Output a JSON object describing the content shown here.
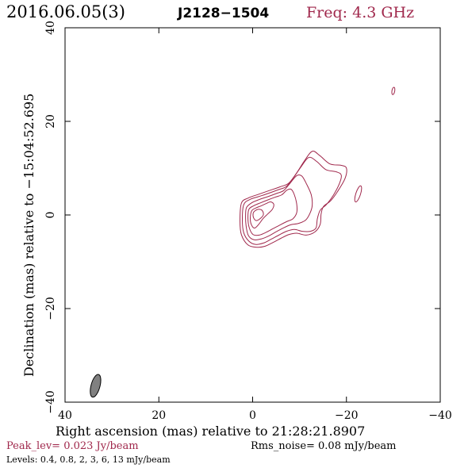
{
  "header": {
    "date": "2016.06.05(3)",
    "source": "J2128−1504",
    "freq": "Freq: 4.3 GHz"
  },
  "footer": {
    "peak": "Peak_lev=  0.023 Jy/beam",
    "rms": "Rms_noise= 0.08 mJy/beam",
    "levels": "Levels: 0.4, 0.8,   2,   3,   6,  13 mJy/beam"
  },
  "colors": {
    "accent": "#a0284c",
    "beam_fill": "#808080"
  },
  "chart_data": {
    "type": "contour",
    "xlabel": "Right ascension (mas) relative to 21:28:21.8907",
    "ylabel": "Declination (mas) relative to −15:04:52.695",
    "xlim": [
      40,
      -40
    ],
    "ylim": [
      -40,
      40
    ],
    "x_ticks": [
      40,
      20,
      0,
      -20,
      -40
    ],
    "y_ticks": [
      -40,
      -20,
      0,
      20,
      40
    ],
    "x_tick_labels": [
      "40",
      "20",
      "0",
      "−20",
      "−40"
    ],
    "y_tick_labels": [
      "−40",
      "−20",
      "0",
      "20",
      "40"
    ],
    "contour_levels_mJy": [
      0.4,
      0.8,
      2,
      3,
      6,
      13
    ],
    "beam": {
      "x": 33.5,
      "y": -36.5,
      "major": 5.0,
      "minor": 1.9,
      "pa_deg": 15
    },
    "contours": [
      [
        [
          2.4,
          2.5
        ],
        [
          1.0,
          3.6
        ],
        [
          -1.2,
          4.4
        ],
        [
          -3.5,
          5.2
        ],
        [
          -5.8,
          6.0
        ],
        [
          -7.7,
          6.8
        ],
        [
          -9.4,
          9.0
        ],
        [
          -11.0,
          11.5
        ],
        [
          -12.7,
          13.6
        ],
        [
          -14.3,
          12.7
        ],
        [
          -16.5,
          10.9
        ],
        [
          -18.9,
          10.6
        ],
        [
          -20.0,
          10.0
        ],
        [
          -19.7,
          7.8
        ],
        [
          -18.1,
          5.0
        ],
        [
          -16.6,
          3.0
        ],
        [
          -15.1,
          1.8
        ],
        [
          -14.6,
          0.2
        ],
        [
          -14.4,
          -2.0
        ],
        [
          -13.3,
          -3.6
        ],
        [
          -11.4,
          -4.3
        ],
        [
          -9.4,
          -3.9
        ],
        [
          -7.7,
          -4.2
        ],
        [
          -6.0,
          -5.0
        ],
        [
          -4.3,
          -5.9
        ],
        [
          -2.6,
          -6.7
        ],
        [
          -0.9,
          -6.9
        ],
        [
          1.0,
          -6.4
        ],
        [
          2.4,
          -4.2
        ],
        [
          2.7,
          -1.3
        ]
      ],
      [
        [
          1.9,
          2.2
        ],
        [
          0.6,
          3.3
        ],
        [
          -1.2,
          3.9
        ],
        [
          -3.3,
          4.6
        ],
        [
          -5.5,
          5.4
        ],
        [
          -7.2,
          6.1
        ],
        [
          -8.8,
          8.1
        ],
        [
          -10.4,
          10.4
        ],
        [
          -12.0,
          12.3
        ],
        [
          -13.7,
          11.4
        ],
        [
          -15.6,
          9.7
        ],
        [
          -17.9,
          9.2
        ],
        [
          -18.9,
          8.5
        ],
        [
          -18.5,
          6.7
        ],
        [
          -17.2,
          4.2
        ],
        [
          -15.7,
          2.2
        ],
        [
          -14.4,
          1.0
        ],
        [
          -13.8,
          -0.8
        ],
        [
          -13.5,
          -2.8
        ],
        [
          -12.3,
          -3.5
        ],
        [
          -10.6,
          -3.5
        ],
        [
          -8.9,
          -3.1
        ],
        [
          -7.2,
          -3.5
        ],
        [
          -5.6,
          -4.3
        ],
        [
          -3.9,
          -5.2
        ],
        [
          -2.3,
          -6.0
        ],
        [
          -0.6,
          -6.3
        ],
        [
          0.8,
          -5.6
        ],
        [
          1.9,
          -3.8
        ],
        [
          2.2,
          -1.0
        ]
      ],
      [
        [
          1.3,
          1.6
        ],
        [
          0.2,
          2.6
        ],
        [
          -1.4,
          3.3
        ],
        [
          -3.2,
          3.9
        ],
        [
          -5.1,
          4.6
        ],
        [
          -6.6,
          5.2
        ],
        [
          -8.0,
          6.8
        ],
        [
          -9.4,
          8.4
        ],
        [
          -10.5,
          8.3
        ],
        [
          -11.5,
          6.6
        ],
        [
          -12.5,
          4.3
        ],
        [
          -12.7,
          2.0
        ],
        [
          -12.2,
          0.3
        ],
        [
          -11.3,
          -1.1
        ],
        [
          -9.8,
          -1.8
        ],
        [
          -8.1,
          -2.1
        ],
        [
          -6.5,
          -2.8
        ],
        [
          -5.0,
          -3.6
        ],
        [
          -3.4,
          -4.5
        ],
        [
          -1.9,
          -5.1
        ],
        [
          -0.3,
          -5.3
        ],
        [
          0.9,
          -4.4
        ],
        [
          1.4,
          -2.3
        ],
        [
          1.5,
          0.0
        ]
      ],
      [
        [
          0.8,
          1.2
        ],
        [
          -0.3,
          2.0
        ],
        [
          -1.7,
          2.6
        ],
        [
          -3.2,
          3.2
        ],
        [
          -4.8,
          3.8
        ],
        [
          -6.2,
          4.3
        ],
        [
          -7.3,
          5.3
        ],
        [
          -8.2,
          5.5
        ],
        [
          -8.9,
          4.3
        ],
        [
          -9.4,
          2.3
        ],
        [
          -9.4,
          0.5
        ],
        [
          -8.6,
          -0.8
        ],
        [
          -7.3,
          -1.4
        ],
        [
          -5.9,
          -2.1
        ],
        [
          -4.4,
          -2.9
        ],
        [
          -2.9,
          -3.7
        ],
        [
          -1.4,
          -4.3
        ],
        [
          -0.1,
          -4.2
        ],
        [
          0.7,
          -2.8
        ],
        [
          1.0,
          -0.8
        ]
      ],
      [
        [
          0.2,
          0.9
        ],
        [
          -0.7,
          1.5
        ],
        [
          -1.7,
          1.9
        ],
        [
          -2.8,
          2.4
        ],
        [
          -3.8,
          2.8
        ],
        [
          -4.5,
          2.3
        ],
        [
          -4.2,
          1.2
        ],
        [
          -3.2,
          0.2
        ],
        [
          -2.2,
          -0.8
        ],
        [
          -1.3,
          -2.0
        ],
        [
          -0.4,
          -2.8
        ],
        [
          0.3,
          -2.0
        ],
        [
          0.5,
          -0.6
        ]
      ],
      [
        [
          -0.4,
          0.8
        ],
        [
          -1.2,
          1.2
        ],
        [
          -2.0,
          1.0
        ],
        [
          -2.3,
          0.1
        ],
        [
          -1.7,
          -0.7
        ],
        [
          -0.8,
          -1.2
        ],
        [
          -0.2,
          -0.6
        ],
        [
          -0.1,
          0.3
        ]
      ]
    ],
    "components": [
      {
        "x": -22.5,
        "y": 4.5,
        "rx": 0.5,
        "ry": 1.8,
        "rot_deg": 18
      },
      {
        "x": -30.0,
        "y": 26.5,
        "rx": 0.3,
        "ry": 0.8,
        "rot_deg": 10
      }
    ]
  }
}
